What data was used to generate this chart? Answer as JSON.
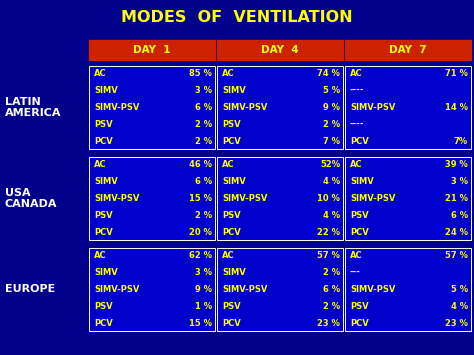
{
  "title": "MODES  OF  VENTILATION",
  "title_color": "#FFFF00",
  "bg_color": "#00008B",
  "header_bg": "#CC2200",
  "header_text_color": "#FFFF00",
  "cell_bg": "#0000CD",
  "cell_text_color": "#FFFF00",
  "region_label_color": "#FFFFFF",
  "headers": [
    "DAY  1",
    "DAY  4",
    "DAY  7"
  ],
  "regions": [
    "LATIN\nAMERICA",
    "USA\nCANADA",
    "EUROPE"
  ],
  "data": {
    "LATIN\nAMERICA": {
      "DAY  1": [
        [
          "AC",
          "85 %"
        ],
        [
          "SIMV",
          "3 %"
        ],
        [
          "SIMV-PSV",
          "6 %"
        ],
        [
          "PSV",
          "2 %"
        ],
        [
          "PCV",
          "2 %"
        ]
      ],
      "DAY  4": [
        [
          "AC",
          "74 %"
        ],
        [
          "SIMV",
          "5 %"
        ],
        [
          "SIMV-PSV",
          "9 %"
        ],
        [
          "PSV",
          "2 %"
        ],
        [
          "PCV",
          "7 %"
        ]
      ],
      "DAY  7": [
        [
          "AC",
          "71 %"
        ],
        [
          "----",
          ""
        ],
        [
          "SIMV-PSV",
          "14 %"
        ],
        [
          "----",
          ""
        ],
        [
          "PCV",
          "7%"
        ]
      ]
    },
    "USA\nCANADA": {
      "DAY  1": [
        [
          "AC",
          "46 %"
        ],
        [
          "SIMV",
          "6 %"
        ],
        [
          "SIMV-PSV",
          "15 %"
        ],
        [
          "PSV",
          "2 %"
        ],
        [
          "PCV",
          "20 %"
        ]
      ],
      "DAY  4": [
        [
          "AC",
          "52%"
        ],
        [
          "SIMV",
          "4 %"
        ],
        [
          "SIMV-PSV",
          "10 %"
        ],
        [
          "PSV",
          "4 %"
        ],
        [
          "PCV",
          "22 %"
        ]
      ],
      "DAY  7": [
        [
          "AC",
          "39 %"
        ],
        [
          "SIMV",
          "3 %"
        ],
        [
          "SIMV-PSV",
          "21 %"
        ],
        [
          "PSV",
          "6 %"
        ],
        [
          "PCV",
          "24 %"
        ]
      ]
    },
    "EUROPE": {
      "DAY  1": [
        [
          "AC",
          "62 %"
        ],
        [
          "SIMV",
          "3 %"
        ],
        [
          "SIMV-PSV",
          "9 %"
        ],
        [
          "PSV",
          "1 %"
        ],
        [
          "PCV",
          "15 %"
        ]
      ],
      "DAY  4": [
        [
          "AC",
          "57 %"
        ],
        [
          "SIMV",
          "2 %"
        ],
        [
          "SIMV-PSV",
          "6 %"
        ],
        [
          "PSV",
          "2 %"
        ],
        [
          "PCV",
          "23 %"
        ]
      ],
      "DAY  7": [
        [
          "AC",
          "57 %"
        ],
        [
          "---",
          ""
        ],
        [
          "SIMV-PSV",
          "5 %"
        ],
        [
          "PSV",
          "4 %"
        ],
        [
          "PCV",
          "23 %"
        ]
      ]
    }
  }
}
